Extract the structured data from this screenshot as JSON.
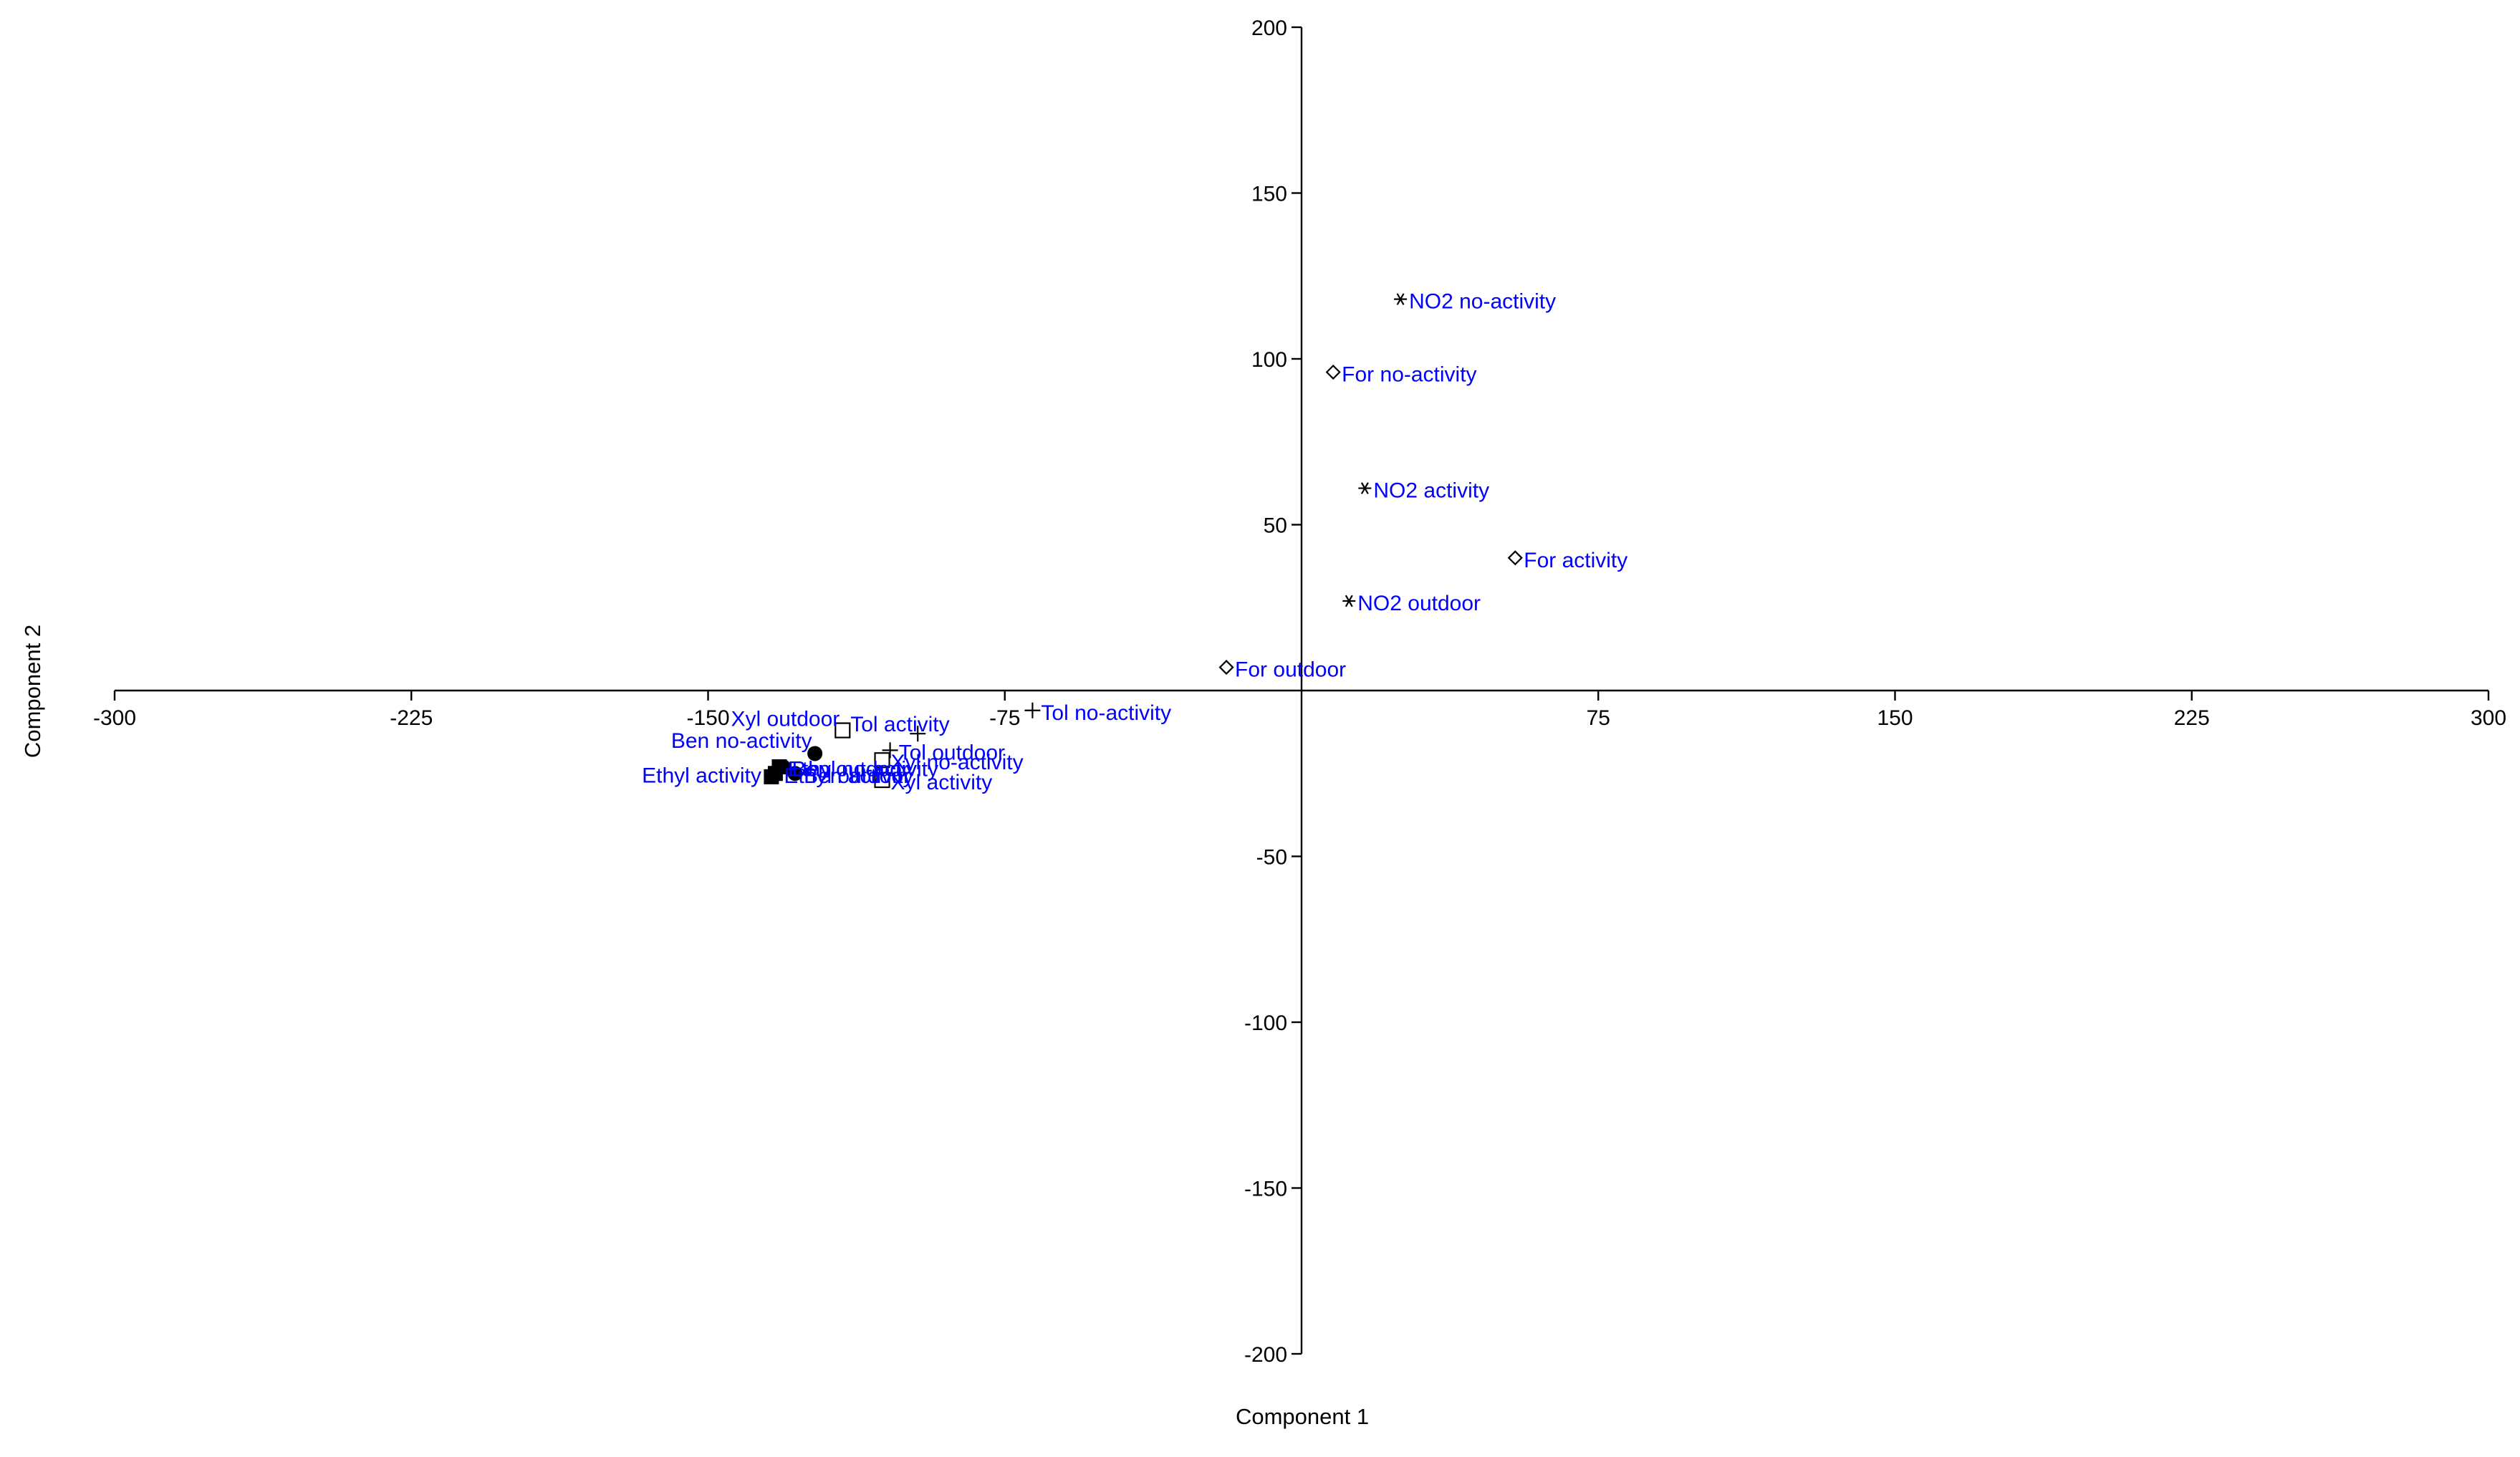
{
  "chart_data": {
    "type": "scatter",
    "title": "",
    "xlabel": "Component 1",
    "ylabel": "Component 2",
    "xlim": [
      -300,
      300
    ],
    "ylim": [
      -200,
      200
    ],
    "xticks": [
      -300,
      -225,
      -150,
      -75,
      75,
      150,
      225,
      300
    ],
    "yticks": [
      200,
      150,
      100,
      50,
      -50,
      -100,
      -150,
      -200
    ],
    "label_color": "#0000ff",
    "marker_color": "#000000",
    "points": [
      {
        "label": "NO2 no-activity",
        "x": 25,
        "y": 118,
        "marker": "asterisk"
      },
      {
        "label": "NO2 activity",
        "x": 16,
        "y": 61,
        "marker": "asterisk"
      },
      {
        "label": "NO2 outdoor",
        "x": 12,
        "y": 27,
        "marker": "asterisk"
      },
      {
        "label": "For no-activity",
        "x": 8,
        "y": 96,
        "marker": "diamond"
      },
      {
        "label": "For activity",
        "x": 54,
        "y": 40,
        "marker": "diamond"
      },
      {
        "label": "For outdoor",
        "x": -19,
        "y": 7,
        "marker": "diamond"
      },
      {
        "label": "Tol no-activity",
        "x": -68,
        "y": -6,
        "marker": "plus"
      },
      {
        "label": "Tol activity",
        "x": -97,
        "y": -13,
        "marker": "plus"
      },
      {
        "label": "Tol outdoor",
        "x": -104,
        "y": -18,
        "marker": "plus"
      },
      {
        "label": "Xyl outdoor",
        "x": -116,
        "y": -12,
        "marker": "square"
      },
      {
        "label": "Xyl no-activity",
        "x": -106,
        "y": -21,
        "marker": "square"
      },
      {
        "label": "Xyl activity",
        "x": -106,
        "y": -27,
        "marker": "square"
      },
      {
        "label": "Ben no-activity",
        "x": -123,
        "y": -19,
        "marker": "circle"
      },
      {
        "label": "Ben activity",
        "x": -128,
        "y": -25,
        "marker": "circle"
      },
      {
        "label": "Ben outdoor",
        "x": -131,
        "y": -23,
        "marker": "circle"
      },
      {
        "label": "Ethyl activity",
        "x": -134,
        "y": -26,
        "marker": "filled-square"
      },
      {
        "label": "Ethyl no-activity",
        "x": -132,
        "y": -23,
        "marker": "filled-square"
      },
      {
        "label": "Ethyl outdoor",
        "x": -133,
        "y": -25,
        "marker": "filled-square"
      }
    ]
  }
}
